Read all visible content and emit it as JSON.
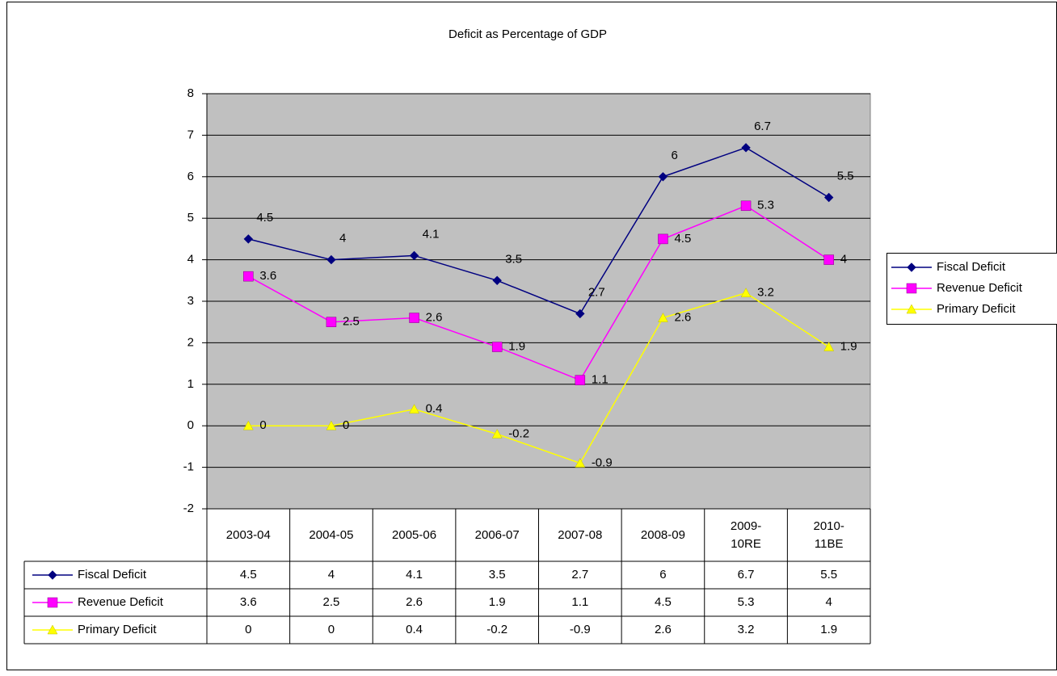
{
  "chart_data": {
    "type": "line",
    "title": "Deficit as Percentage of GDP",
    "categories": [
      "2003-04",
      "2004-05",
      "2005-06",
      "2006-07",
      "2007-08",
      "2008-09",
      "2009-10RE",
      "2010-11BE"
    ],
    "series": [
      {
        "name": "Fiscal Deficit",
        "color": "#000080",
        "marker": "diamond",
        "values": [
          4.5,
          4,
          4.1,
          3.5,
          2.7,
          6,
          6.7,
          5.5
        ]
      },
      {
        "name": "Revenue Deficit",
        "color": "#ff00ff",
        "marker": "square",
        "values": [
          3.6,
          2.5,
          2.6,
          1.9,
          1.1,
          4.5,
          5.3,
          4
        ]
      },
      {
        "name": "Primary Deficit",
        "color": "#ffff00",
        "marker": "triangle",
        "values": [
          0,
          0,
          0.4,
          -0.2,
          -0.9,
          2.6,
          3.2,
          1.9
        ]
      }
    ],
    "ylim": [
      -2,
      8
    ],
    "yticks": [
      -2,
      -1,
      0,
      1,
      2,
      3,
      4,
      5,
      6,
      7,
      8
    ],
    "grid": true,
    "legend": "right",
    "data_table": true
  }
}
